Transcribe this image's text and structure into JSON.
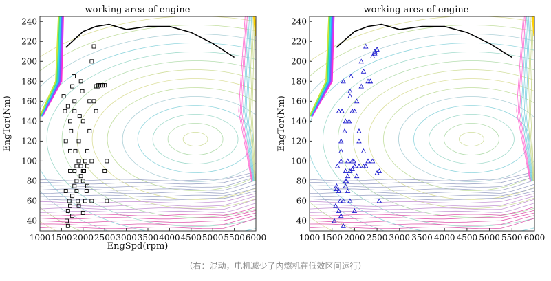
{
  "caption": "（右：混动，电机减少了内燃机在低效区间运行）",
  "chart_data": [
    {
      "type": "scatter",
      "title": "working area of engine",
      "xlabel": "EngSpd(rpm)",
      "ylabel": "EngTor(Nm)",
      "xlim": [
        1000,
        6000
      ],
      "ylim": [
        30,
        245
      ],
      "xticks": [
        1000,
        1500,
        2000,
        2500,
        3000,
        3500,
        4000,
        4500,
        5000,
        5500,
        6000
      ],
      "yticks": [
        40,
        60,
        80,
        100,
        120,
        140,
        160,
        180,
        200,
        220,
        240
      ],
      "max_torque_line": {
        "x": [
          1600,
          2000,
          2300,
          2600,
          3000,
          3500,
          4000,
          4500,
          5000,
          5500
        ],
        "y": [
          214,
          230,
          235,
          237,
          232,
          235,
          235,
          229,
          218,
          204
        ]
      },
      "operating_points": {
        "marker": "square",
        "color": "#000000",
        "x": [
          1550,
          1580,
          1600,
          1620,
          1650,
          1680,
          1700,
          1720,
          1750,
          1780,
          1800,
          1820,
          1850,
          1880,
          1900,
          1920,
          1950,
          1980,
          2000,
          2020,
          2050,
          2080,
          2100,
          2150,
          2200,
          2250,
          2300,
          2350,
          2400,
          2450,
          2500,
          2550,
          1600,
          1650,
          1700,
          1750,
          1800,
          1850,
          1900,
          1950,
          2000,
          2100,
          2200,
          2300,
          2400,
          2500,
          1700,
          1800,
          1900,
          2000,
          2100,
          2200,
          1750,
          1850,
          1950,
          2050,
          2150,
          2250,
          2350,
          2450,
          2550,
          1650,
          1700,
          1800,
          1900,
          2000
        ],
        "y": [
          165,
          150,
          120,
          40,
          35,
          60,
          90,
          130,
          175,
          185,
          150,
          110,
          80,
          60,
          100,
          145,
          180,
          170,
          140,
          90,
          60,
          70,
          110,
          160,
          200,
          215,
          175,
          175,
          176,
          176,
          176,
          100,
          70,
          50,
          55,
          65,
          90,
          95,
          100,
          95,
          90,
          95,
          100,
          150,
          176,
          90,
          140,
          160,
          120,
          80,
          75,
          60,
          45,
          70,
          85,
          100,
          130,
          160,
          176,
          176,
          60,
          155,
          110,
          75,
          55,
          48
        ]
      }
    },
    {
      "type": "scatter",
      "title": "working area of engine",
      "xlabel": "",
      "ylabel": "EngTor(Nm)",
      "xlim": [
        1000,
        6000
      ],
      "ylim": [
        30,
        245
      ],
      "xticks": [
        1000,
        1500,
        2000,
        2500,
        3000,
        3500,
        4000,
        4500,
        5000,
        5500,
        6000
      ],
      "yticks": [
        40,
        60,
        80,
        100,
        120,
        140,
        160,
        180,
        200,
        220,
        240
      ],
      "max_torque_line": {
        "x": [
          1600,
          2000,
          2300,
          2600,
          3000,
          3500,
          4000,
          4500,
          5000,
          5500
        ],
        "y": [
          214,
          230,
          235,
          237,
          232,
          235,
          235,
          229,
          218,
          204
        ]
      },
      "operating_points": {
        "marker": "triangle",
        "color": "#1a1acd",
        "x": [
          1550,
          1580,
          1600,
          1620,
          1650,
          1680,
          1700,
          1720,
          1750,
          1780,
          1800,
          1820,
          1850,
          1880,
          1900,
          1920,
          1950,
          1980,
          2000,
          2050,
          2100,
          2150,
          2200,
          2250,
          2300,
          2350,
          2400,
          2450,
          2500,
          2550,
          1600,
          1650,
          1700,
          1750,
          1800,
          1850,
          1900,
          1950,
          2000,
          2100,
          2200,
          2300,
          2400,
          2500,
          1700,
          1800,
          1900,
          2000,
          2100,
          2200,
          1750,
          1850,
          1950,
          2050,
          2150,
          2250,
          2350,
          2450,
          2550,
          1650,
          1700,
          1800,
          1900,
          2000
        ],
        "y": [
          40,
          55,
          75,
          95,
          70,
          60,
          110,
          150,
          180,
          130,
          90,
          80,
          100,
          140,
          170,
          185,
          150,
          100,
          95,
          85,
          120,
          175,
          190,
          215,
          180,
          180,
          205,
          210,
          212,
          90,
          72,
          50,
          45,
          60,
          80,
          85,
          90,
          92,
          95,
          95,
          95,
          100,
          100,
          88,
          120,
          140,
          165,
          150,
          130,
          110,
          35,
          70,
          100,
          160,
          200,
          95,
          180,
          208,
          60,
          150,
          100,
          75,
          60,
          50
        ]
      }
    }
  ]
}
